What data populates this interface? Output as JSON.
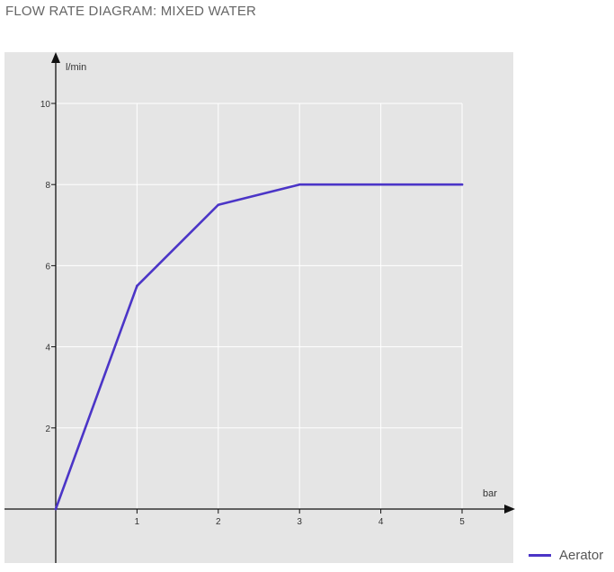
{
  "title": "FLOW RATE DIAGRAM: MIXED WATER",
  "colors": {
    "plot_background": "#e5e5e5",
    "grid": "#ffffff",
    "axis": "#111111",
    "series": "#4b35c7",
    "tick_text": "#333333"
  },
  "chart_data": {
    "type": "line",
    "title": "FLOW RATE DIAGRAM: MIXED WATER",
    "xlabel": "bar",
    "ylabel": "l/min",
    "xlim": [
      0,
      5
    ],
    "ylim": [
      0,
      10
    ],
    "x_ticks": [
      1,
      2,
      3,
      4,
      5
    ],
    "y_ticks": [
      2,
      4,
      6,
      8,
      10
    ],
    "grid": true,
    "legend_position": "bottom-right",
    "series": [
      {
        "name": "Aerator",
        "x": [
          0,
          1,
          2,
          3,
          4,
          5
        ],
        "y": [
          0,
          5.5,
          7.5,
          8,
          8,
          8
        ]
      }
    ]
  }
}
